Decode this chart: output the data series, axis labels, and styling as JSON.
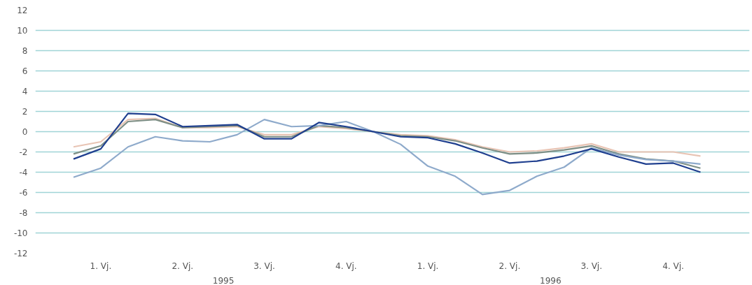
{
  "chart_data": {
    "type": "line",
    "categories": [
      null,
      "1. Vj.",
      null,
      null,
      "2. Vj.",
      null,
      null,
      "3. Vj.",
      null,
      null,
      "4. Vj.",
      null,
      null,
      "1. Vj.",
      null,
      null,
      "2. Vj.",
      null,
      null,
      "3. Vj.",
      null,
      null,
      "4. Vj.",
      null
    ],
    "series": [
      {
        "color": "#e8c4b4",
        "values": [
          -1.5,
          -1.0,
          1.2,
          1.3,
          0.4,
          0.4,
          0.5,
          -0.3,
          -0.3,
          0.5,
          0.3,
          0,
          -0.3,
          -0.4,
          -0.8,
          -1.5,
          -2.0,
          -1.9,
          -1.6,
          -1.2,
          -2.0,
          -2.0,
          -2.0,
          -2.4
        ]
      },
      {
        "color": "#7e8f86",
        "values": [
          -2.2,
          -1.4,
          1.0,
          1.2,
          0.4,
          0.5,
          0.6,
          -0.5,
          -0.5,
          0.6,
          0.4,
          0,
          -0.4,
          -0.5,
          -0.9,
          -1.6,
          -2.2,
          -2.1,
          -1.8,
          -1.4,
          -2.2,
          -2.7,
          -2.9,
          -3.6
        ]
      },
      {
        "color": "#8eaacb",
        "values": [
          -4.5,
          -3.6,
          -1.5,
          -0.5,
          -0.9,
          -1.0,
          -0.3,
          1.2,
          0.5,
          0.6,
          1.0,
          0,
          -1.25,
          -3.4,
          -4.4,
          -6.2,
          -5.8,
          -4.4,
          -3.5,
          -1.6,
          -2.3,
          -2.75,
          -2.9,
          -3.2
        ]
      },
      {
        "color": "#1f3f8f",
        "values": [
          -2.7,
          -1.7,
          1.8,
          1.7,
          0.5,
          0.6,
          0.7,
          -0.7,
          -0.7,
          0.9,
          0.5,
          0,
          -0.5,
          -0.6,
          -1.2,
          -2.1,
          -3.1,
          -2.9,
          -2.4,
          -1.7,
          -2.5,
          -3.2,
          -3.1,
          -4.0
        ]
      }
    ],
    "annotations": [
      "1995",
      "1996"
    ],
    "ylim": [
      -12,
      12
    ],
    "yticks": [
      -12,
      -10,
      -8,
      -6,
      -4,
      -2,
      0,
      2,
      4,
      6,
      8,
      10,
      12
    ],
    "grid": "y",
    "line_style": "solid",
    "marker": "none"
  }
}
